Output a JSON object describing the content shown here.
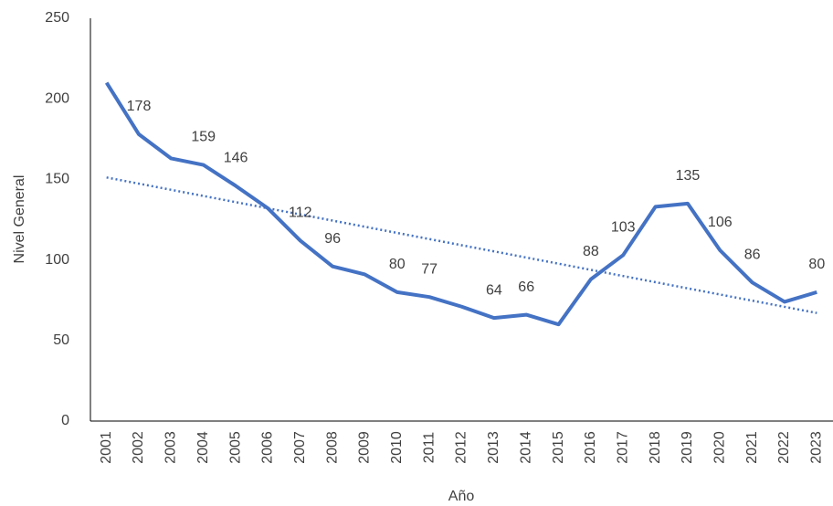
{
  "chart_data": {
    "type": "line",
    "x_label": "Año",
    "y_label": "Nivel General",
    "categories": [
      "2001",
      "2002",
      "2003",
      "2004",
      "2005",
      "2006",
      "2007",
      "2008",
      "2009",
      "2010",
      "2011",
      "2012",
      "2013",
      "2014",
      "2015",
      "2016",
      "2017",
      "2018",
      "2019",
      "2020",
      "2021",
      "2022",
      "2023"
    ],
    "values": [
      210,
      178,
      163,
      159,
      146,
      132,
      112,
      96,
      91,
      80,
      77,
      71,
      64,
      66,
      60,
      88,
      103,
      133,
      135,
      106,
      86,
      74,
      80
    ],
    "show_label": [
      false,
      true,
      false,
      true,
      true,
      false,
      true,
      true,
      false,
      true,
      true,
      false,
      true,
      true,
      false,
      true,
      true,
      false,
      true,
      true,
      true,
      false,
      true
    ],
    "color": "#4472c4",
    "trendline": "linear",
    "ylim": [
      0,
      250
    ],
    "yticks": [
      0,
      50,
      100,
      150,
      200,
      250
    ],
    "grid": false
  }
}
